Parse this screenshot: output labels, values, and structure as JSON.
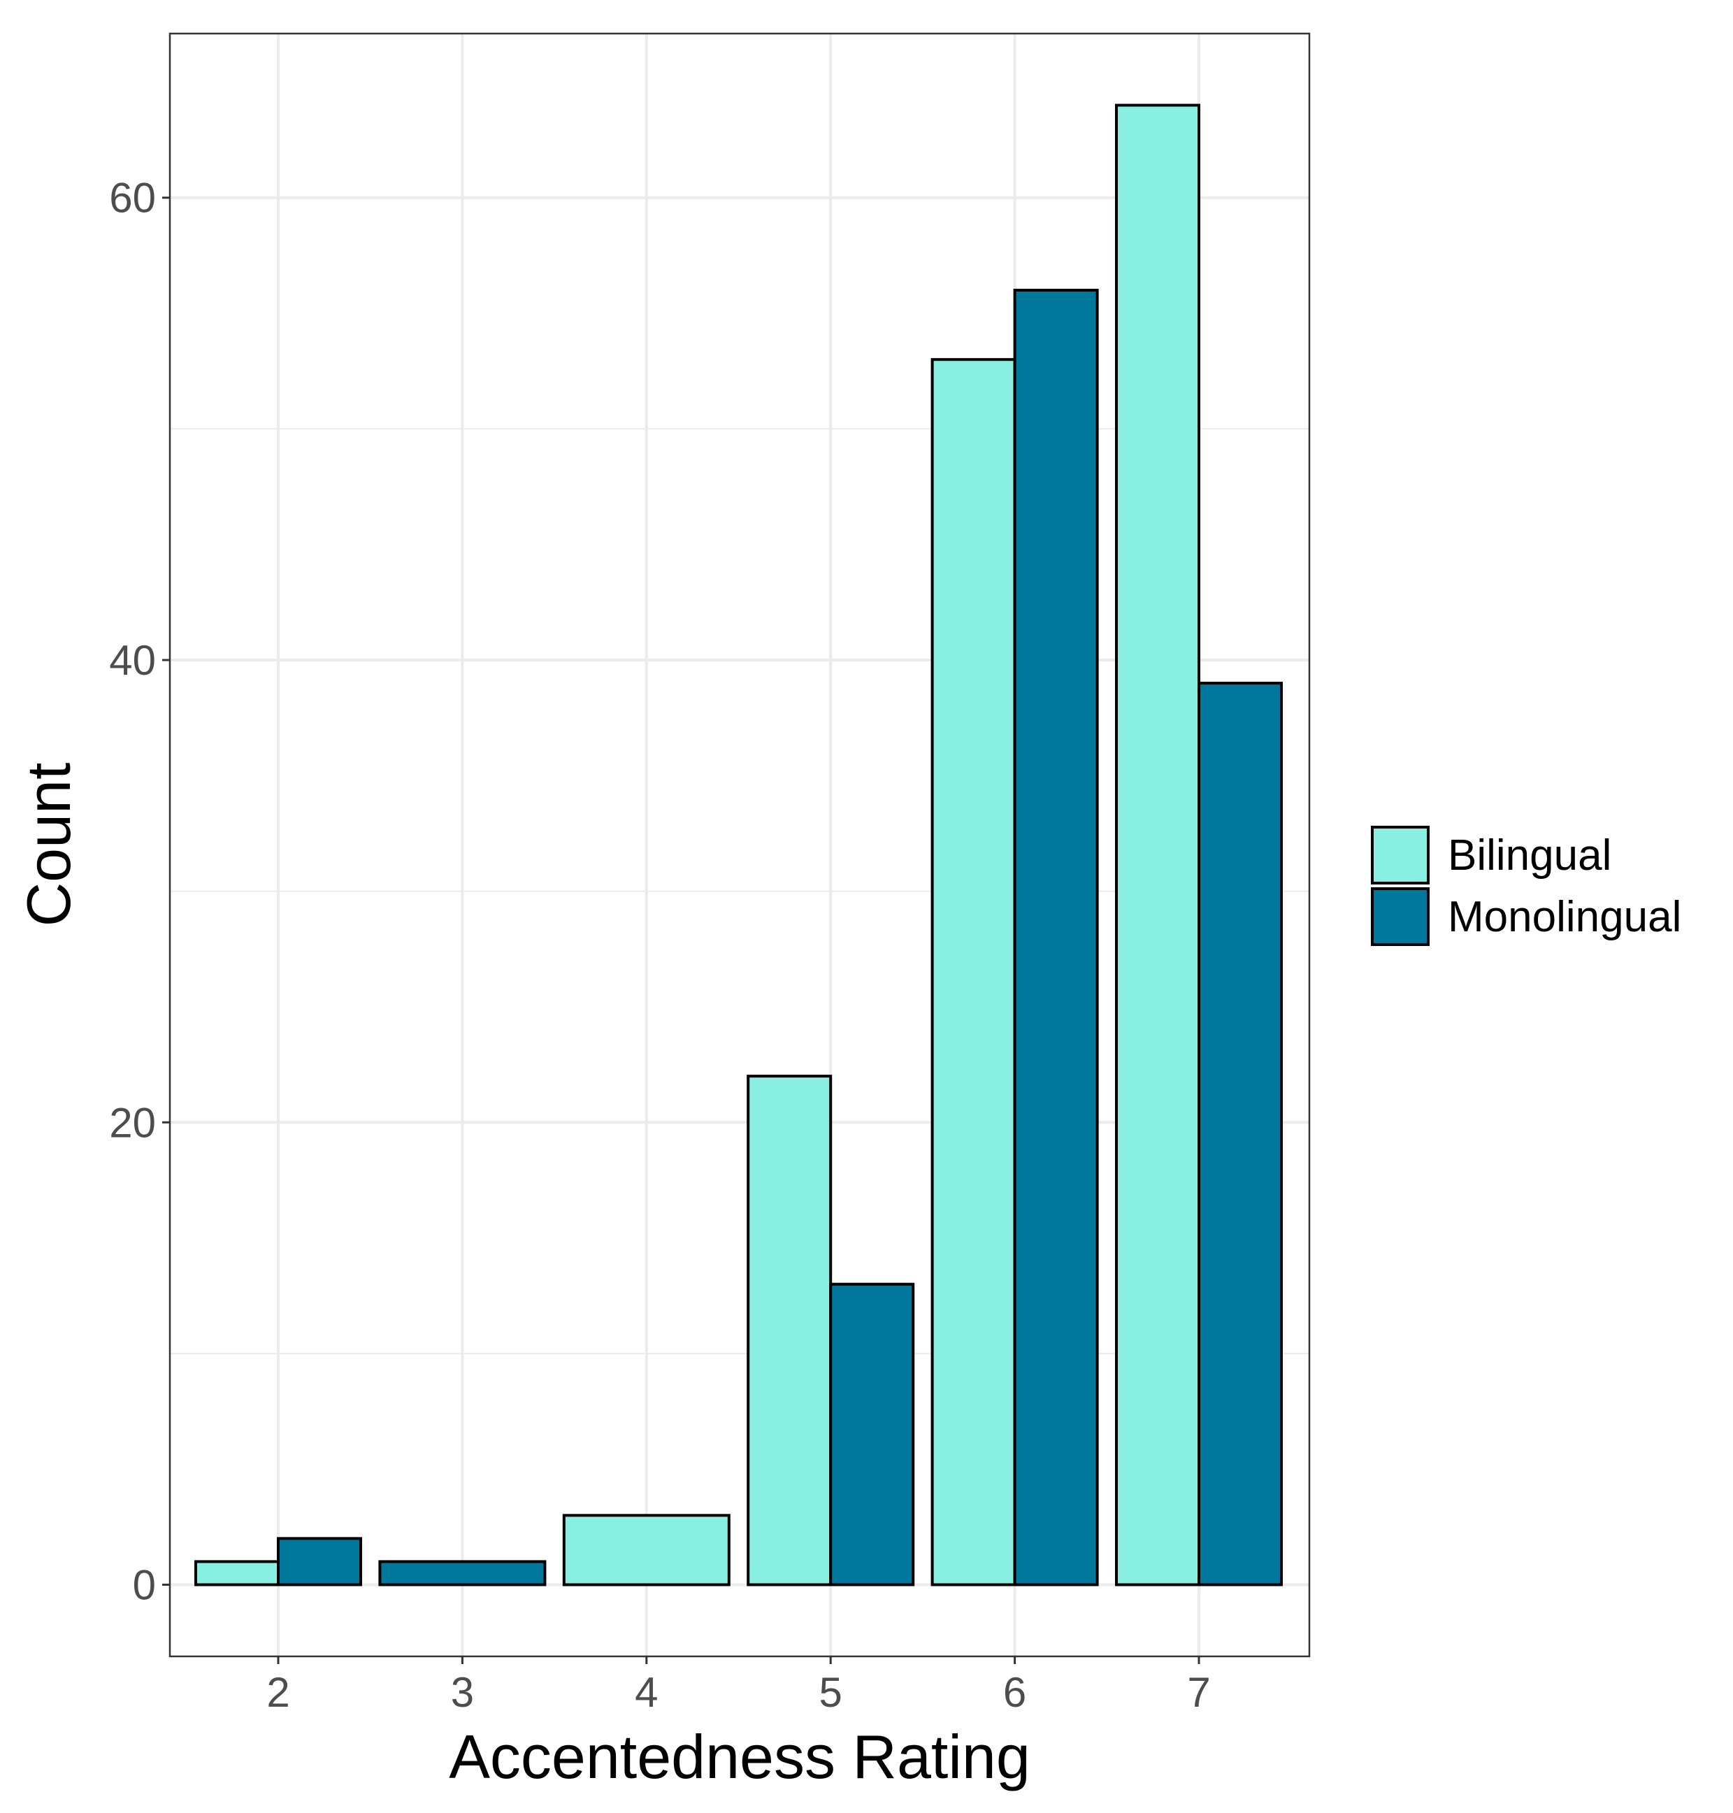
{
  "chart_data": {
    "type": "bar",
    "title": "",
    "xlabel": "Accentedness Rating",
    "ylabel": "Count",
    "categories": [
      "2",
      "3",
      "4",
      "5",
      "6",
      "7"
    ],
    "series": [
      {
        "name": "Bilingual",
        "color": "#88EFE2",
        "values": [
          1,
          0,
          3,
          22,
          53,
          64
        ]
      },
      {
        "name": "Monolingual",
        "color": "#00789E",
        "values": [
          2,
          1,
          0,
          13,
          56,
          39
        ]
      }
    ],
    "bar_notes": "For categories 3 and 4 only one group is present and the bar spans the full category width.",
    "ylim": [
      -3.1,
      67.1
    ],
    "yticks": [
      0,
      20,
      40,
      60
    ],
    "yminor": [
      10,
      30,
      50
    ],
    "legend": {
      "position": "right",
      "items": [
        "Bilingual",
        "Monolingual"
      ]
    },
    "grid": true,
    "colors": {
      "background": "#ffffff",
      "grid": "#ebebeb",
      "panel_border": "#333333",
      "tick_label": "#4d4d4d",
      "axis_title": "#000000",
      "bar_outline": "#000000"
    }
  }
}
